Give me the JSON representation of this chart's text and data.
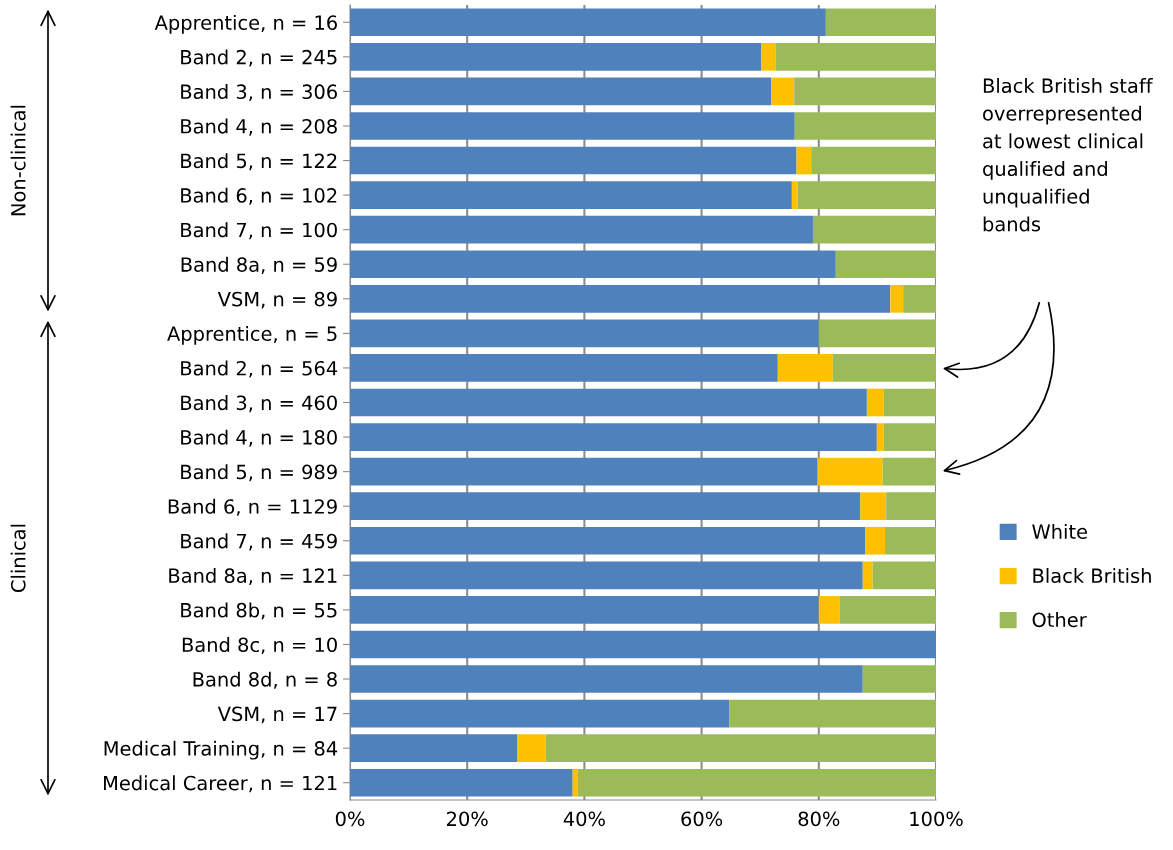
{
  "chart_data": {
    "type": "bar",
    "orientation": "horizontal",
    "stacked": true,
    "categories": [
      "Apprentice, n = 16",
      "Band 2, n = 245",
      "Band 3, n = 306",
      "Band 4, n = 208",
      "Band 5, n = 122",
      "Band 6, n = 102",
      "Band 7, n = 100",
      "Band 8a, n = 59",
      "VSM, n = 89",
      "Apprentice, n = 5",
      "Band 2, n = 564",
      "Band 3, n = 460",
      "Band 4, n = 180",
      "Band 5, n = 989",
      "Band 6, n = 1129",
      "Band 7, n = 459",
      "Band 8a, n = 121",
      "Band 8b, n = 55",
      "Band 8c, n = 10",
      "Band 8d, n = 8",
      "VSM, n = 17",
      "Medical Training, n = 84",
      "Medical Career, n = 121"
    ],
    "series": [
      {
        "name": "White",
        "color": "#4f81bd",
        "values": [
          81.2,
          70.2,
          71.9,
          75.9,
          76.2,
          75.4,
          79.0,
          82.9,
          92.2,
          80.0,
          73.0,
          88.2,
          89.9,
          79.8,
          87.1,
          87.9,
          87.5,
          80.0,
          100,
          87.5,
          64.7,
          28.5,
          38.0
        ]
      },
      {
        "name": "Black British",
        "color": "#ffc000",
        "values": [
          0,
          2.4,
          3.9,
          0,
          2.5,
          1.0,
          0,
          0,
          2.2,
          0,
          9.4,
          2.9,
          1.2,
          11.1,
          4.4,
          3.4,
          1.7,
          3.6,
          0,
          0,
          0,
          4.9,
          0.9
        ]
      },
      {
        "name": "Other",
        "color": "#9bbb59",
        "values": [
          18.8,
          27.4,
          24.2,
          24.1,
          21.3,
          23.6,
          21.0,
          17.1,
          5.6,
          20.0,
          17.6,
          8.9,
          8.9,
          9.1,
          8.5,
          8.7,
          10.8,
          16.4,
          0,
          12.5,
          35.3,
          66.6,
          61.1
        ]
      }
    ],
    "xlim": [
      0,
      100
    ],
    "xticks": [
      {
        "value": 0,
        "label": "0%"
      },
      {
        "value": 20,
        "label": "20%"
      },
      {
        "value": 40,
        "label": "40%"
      },
      {
        "value": 60,
        "label": "60%"
      },
      {
        "value": 80,
        "label": "80%"
      },
      {
        "value": 100,
        "label": "100%"
      }
    ],
    "grid": "x",
    "legend": "right",
    "annotations": [
      "Non-clinical",
      "Clinical",
      "Black British staff\noverrepresented\nat lowest clinical\nqualified and\nunqualified\nbands"
    ]
  }
}
